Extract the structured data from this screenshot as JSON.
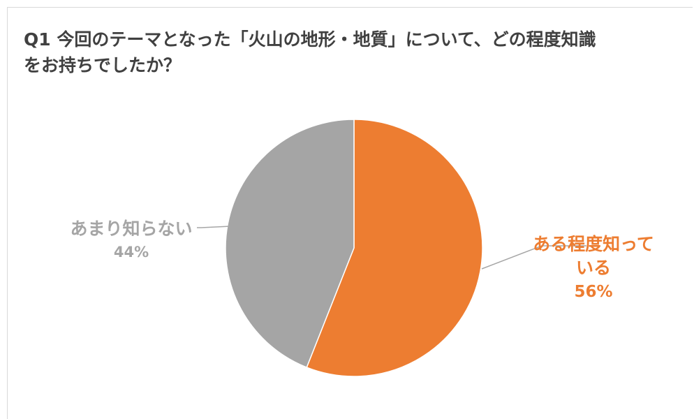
{
  "chart_data": {
    "type": "pie",
    "title": "Q1 今回のテーマとなった「火山の地形・地質」について、どの程度知識をお持ちでしたか？",
    "slices": [
      {
        "name": "ある程度知っている",
        "label_lines": [
          "ある程度知って",
          "いる"
        ],
        "value": 56,
        "value_label": "56%",
        "color": "#ed7d31"
      },
      {
        "name": "あまり知らない",
        "label_lines": [
          "あまり知らない"
        ],
        "value": 44,
        "value_label": "44%",
        "color": "#a5a5a5"
      }
    ],
    "legend": "none",
    "data_labels": "outside with leader lines"
  }
}
